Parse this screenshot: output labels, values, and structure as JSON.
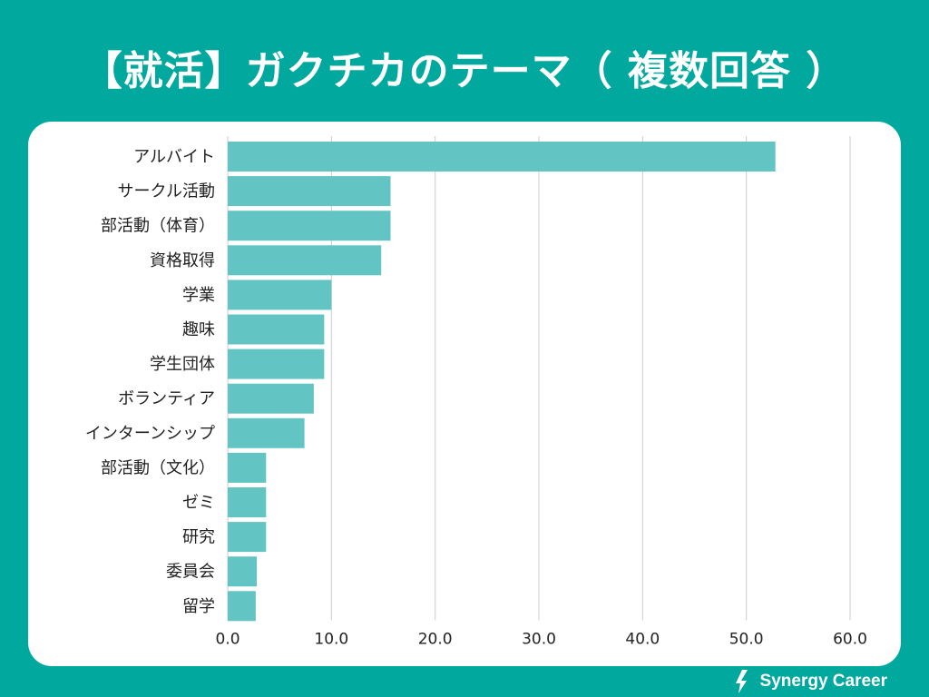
{
  "title": "【就活】ガクチカのテーマ（ 複数回答 ）",
  "brand": {
    "name": "Synergy Career",
    "icon": "synergy-logo-icon"
  },
  "colors": {
    "background": "#00a89d",
    "bar": "#63c5c3",
    "grid": "#cccccc",
    "card": "#ffffff"
  },
  "chart_data": {
    "type": "bar",
    "orientation": "horizontal",
    "title": "",
    "xlabel": "",
    "ylabel": "",
    "categories": [
      "アルバイト",
      "サークル活動",
      "部活動（体育）",
      "資格取得",
      "学業",
      "趣味",
      "学生団体",
      "ボランティア",
      "インターンシップ",
      "部活動（文化）",
      "ゼミ",
      "研究",
      "委員会",
      "留学"
    ],
    "values": [
      52.8,
      15.7,
      15.7,
      14.8,
      10.0,
      9.3,
      9.3,
      8.3,
      7.4,
      3.7,
      3.7,
      3.7,
      2.8,
      2.7
    ],
    "xlim": [
      0,
      60
    ],
    "xticks": [
      0,
      10,
      20,
      30,
      40,
      50,
      60
    ],
    "xtick_labels": [
      "0.0",
      "10.0",
      "20.0",
      "30.0",
      "40.0",
      "50.0",
      "60.0"
    ],
    "grid": "vertical",
    "legend": "none"
  }
}
